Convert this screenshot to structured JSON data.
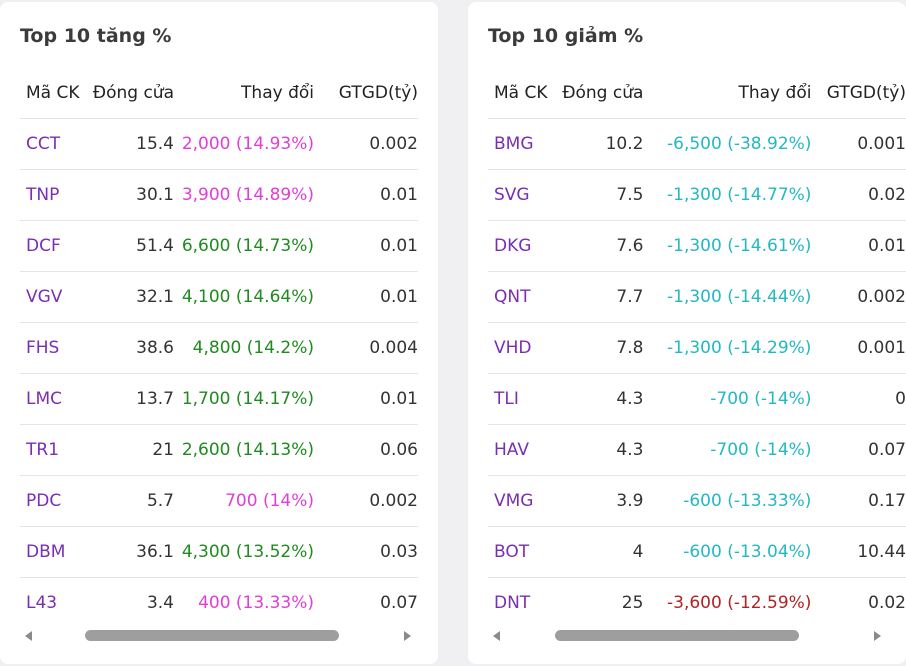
{
  "gainers": {
    "title": "Top 10 tăng %",
    "headers": [
      "Mã CK",
      "Đóng cửa",
      "Thay đổi",
      "GTGD(tỷ)"
    ],
    "rows": [
      {
        "code": "CCT",
        "close": "15.4",
        "change": "2,000 (14.93%)",
        "value": "0.002",
        "color": "#e03ed6"
      },
      {
        "code": "TNP",
        "close": "30.1",
        "change": "3,900 (14.89%)",
        "value": "0.01",
        "color": "#e03ed6"
      },
      {
        "code": "DCF",
        "close": "51.4",
        "change": "6,600 (14.73%)",
        "value": "0.01",
        "color": "#1f8a1f"
      },
      {
        "code": "VGV",
        "close": "32.1",
        "change": "4,100 (14.64%)",
        "value": "0.01",
        "color": "#1f8a1f"
      },
      {
        "code": "FHS",
        "close": "38.6",
        "change": "4,800 (14.2%)",
        "value": "0.004",
        "color": "#1f8a1f"
      },
      {
        "code": "LMC",
        "close": "13.7",
        "change": "1,700 (14.17%)",
        "value": "0.01",
        "color": "#1f8a1f"
      },
      {
        "code": "TR1",
        "close": "21",
        "change": "2,600 (14.13%)",
        "value": "0.06",
        "color": "#1f8a1f"
      },
      {
        "code": "PDC",
        "close": "5.7",
        "change": "700 (14%)",
        "value": "0.002",
        "color": "#e03ed6"
      },
      {
        "code": "DBM",
        "close": "36.1",
        "change": "4,300 (13.52%)",
        "value": "0.03",
        "color": "#1f8a1f"
      },
      {
        "code": "L43",
        "close": "3.4",
        "change": "400 (13.33%)",
        "value": "0.07",
        "color": "#e03ed6"
      }
    ]
  },
  "losers": {
    "title": "Top 10 giảm %",
    "headers": [
      "Mã CK",
      "Đóng cửa",
      "Thay đổi",
      "GTGD(tỷ)"
    ],
    "rows": [
      {
        "code": "BMG",
        "close": "10.2",
        "change": "-6,500 (-38.92%)",
        "value": "0.001",
        "color": "#23b8c4"
      },
      {
        "code": "SVG",
        "close": "7.5",
        "change": "-1,300 (-14.77%)",
        "value": "0.02",
        "color": "#23b8c4"
      },
      {
        "code": "DKG",
        "close": "7.6",
        "change": "-1,300 (-14.61%)",
        "value": "0.01",
        "color": "#23b8c4"
      },
      {
        "code": "QNT",
        "close": "7.7",
        "change": "-1,300 (-14.44%)",
        "value": "0.002",
        "color": "#23b8c4"
      },
      {
        "code": "VHD",
        "close": "7.8",
        "change": "-1,300 (-14.29%)",
        "value": "0.001",
        "color": "#23b8c4"
      },
      {
        "code": "TLI",
        "close": "4.3",
        "change": "-700 (-14%)",
        "value": "0",
        "color": "#23b8c4"
      },
      {
        "code": "HAV",
        "close": "4.3",
        "change": "-700 (-14%)",
        "value": "0.07",
        "color": "#23b8c4"
      },
      {
        "code": "VMG",
        "close": "3.9",
        "change": "-600 (-13.33%)",
        "value": "0.17",
        "color": "#23b8c4"
      },
      {
        "code": "BOT",
        "close": "4",
        "change": "-600 (-13.04%)",
        "value": "10.44",
        "color": "#23b8c4"
      },
      {
        "code": "DNT",
        "close": "25",
        "change": "-3,600 (-12.59%)",
        "value": "0.02",
        "color": "#b22222"
      }
    ]
  }
}
